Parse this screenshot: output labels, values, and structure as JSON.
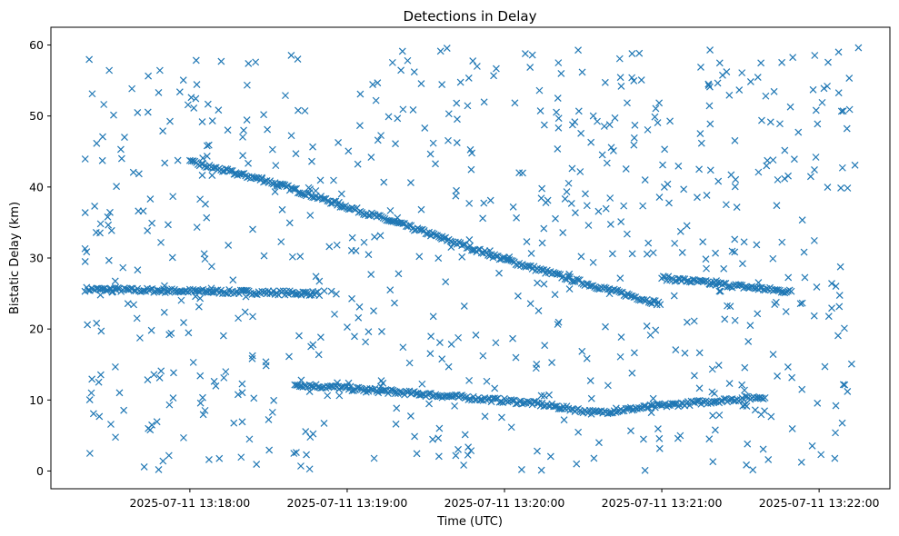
{
  "chart_data": {
    "type": "scatter",
    "title": "Detections in Delay",
    "xlabel": "Time (UTC)",
    "ylabel": "Bistatic Delay (km)",
    "x_ticks": [
      "2025-07-11 13:18:00",
      "2025-07-11 13:19:00",
      "2025-07-11 13:20:00",
      "2025-07-11 13:21:00",
      "2025-07-11 13:22:00"
    ],
    "y_ticks": [
      "0",
      "10",
      "20",
      "30",
      "40",
      "50",
      "60"
    ],
    "xlim": [
      "2025-07-11 13:17:07",
      "2025-07-11 13:22:27"
    ],
    "ylim": [
      -2.5,
      62.5
    ],
    "grid": false,
    "marker": "x",
    "color": "#1f77b4",
    "tracks": [
      {
        "desc_x": "steady near 25 km",
        "points": [
          [
            "2025-07-11 13:17:20",
            25.6
          ],
          [
            "2025-07-11 13:18:50",
            25.0
          ]
        ]
      },
      {
        "desc_x": "descending track",
        "points": [
          [
            "2025-07-11 13:18:00",
            43.5
          ],
          [
            "2025-07-11 13:18:30",
            40.8
          ],
          [
            "2025-07-11 13:19:00",
            37.2
          ],
          [
            "2025-07-11 13:19:30",
            33.6
          ],
          [
            "2025-07-11 13:20:00",
            29.8
          ],
          [
            "2025-07-11 13:20:30",
            26.5
          ],
          [
            "2025-07-11 13:21:00",
            23.5
          ]
        ]
      },
      {
        "desc_x": "late track",
        "points": [
          [
            "2025-07-11 13:21:00",
            27.2
          ],
          [
            "2025-07-11 13:21:50",
            25.2
          ]
        ]
      },
      {
        "desc_x": "low band",
        "points": [
          [
            "2025-07-11 13:18:40",
            12.2
          ],
          [
            "2025-07-11 13:19:30",
            10.8
          ],
          [
            "2025-07-11 13:20:10",
            9.6
          ],
          [
            "2025-07-11 13:20:35",
            8.2
          ],
          [
            "2025-07-11 13:21:00",
            9.2
          ],
          [
            "2025-07-11 13:21:40",
            10.5
          ]
        ]
      }
    ],
    "clutter_count": 700
  }
}
